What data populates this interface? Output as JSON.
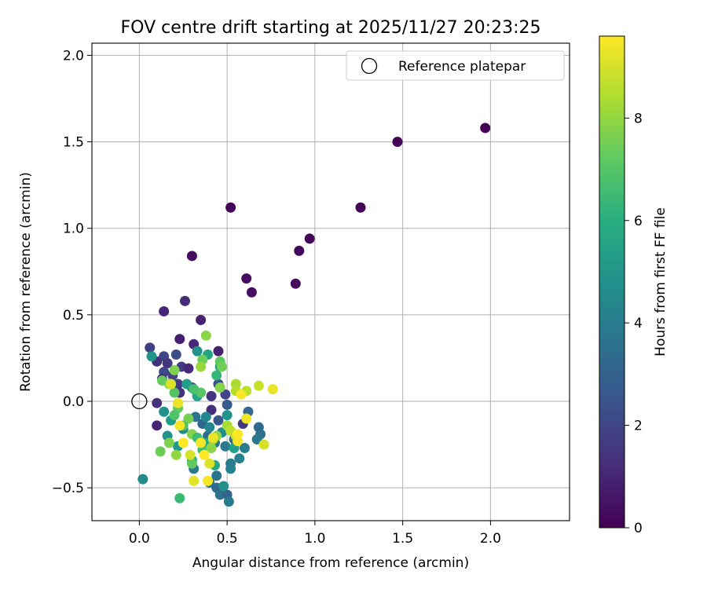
{
  "chart_data": {
    "type": "scatter",
    "title": "FOV centre drift starting at 2025/11/27 20:23:25",
    "xlabel": "Angular distance from reference (arcmin)",
    "ylabel": "Rotation from reference (arcmin)",
    "xlim": [
      -0.27,
      2.45
    ],
    "ylim": [
      -0.69,
      2.07
    ],
    "xticks": [
      {
        "value": 0.0,
        "label": "0.0"
      },
      {
        "value": 0.5,
        "label": "0.5"
      },
      {
        "value": 1.0,
        "label": "1.0"
      },
      {
        "value": 1.5,
        "label": "1.5"
      },
      {
        "value": 2.0,
        "label": "2.0"
      }
    ],
    "yticks": [
      {
        "value": -0.5,
        "label": "−0.5"
      },
      {
        "value": 0.0,
        "label": "0.0"
      },
      {
        "value": 0.5,
        "label": "0.5"
      },
      {
        "value": 1.0,
        "label": "1.0"
      },
      {
        "value": 1.5,
        "label": "1.5"
      },
      {
        "value": 2.0,
        "label": "2.0"
      }
    ],
    "grid": true,
    "legend": {
      "position": "upper-right",
      "entries": [
        "Reference platepar"
      ]
    },
    "reference_point": {
      "x": 0.0,
      "y": 0.0,
      "label": "Reference platepar"
    },
    "colorbar": {
      "label": "Hours from first FF file",
      "min": 0,
      "max": 9.6,
      "colormap": "viridis",
      "ticks": [
        {
          "value": 0,
          "label": "0"
        },
        {
          "value": 2,
          "label": "2"
        },
        {
          "value": 4,
          "label": "4"
        },
        {
          "value": 6,
          "label": "6"
        },
        {
          "value": 8,
          "label": "8"
        }
      ]
    },
    "points": [
      {
        "x": 1.97,
        "y": 1.58,
        "c": 0.02
      },
      {
        "x": 1.47,
        "y": 1.5,
        "c": 0.05
      },
      {
        "x": 1.26,
        "y": 1.12,
        "c": 0.1
      },
      {
        "x": 0.52,
        "y": 1.12,
        "c": 0.08
      },
      {
        "x": 0.97,
        "y": 0.94,
        "c": 0.15
      },
      {
        "x": 0.91,
        "y": 0.87,
        "c": 0.2
      },
      {
        "x": 0.89,
        "y": 0.68,
        "c": 0.25
      },
      {
        "x": 0.3,
        "y": 0.84,
        "c": 0.3
      },
      {
        "x": 0.61,
        "y": 0.71,
        "c": 0.35
      },
      {
        "x": 0.64,
        "y": 0.63,
        "c": 0.4
      },
      {
        "x": 0.26,
        "y": 0.58,
        "c": 1.2
      },
      {
        "x": 0.14,
        "y": 0.52,
        "c": 1.0
      },
      {
        "x": 0.35,
        "y": 0.47,
        "c": 0.9
      },
      {
        "x": 0.23,
        "y": 0.36,
        "c": 0.8
      },
      {
        "x": 0.06,
        "y": 0.31,
        "c": 1.8
      },
      {
        "x": 0.31,
        "y": 0.33,
        "c": 1.1
      },
      {
        "x": 0.45,
        "y": 0.29,
        "c": 0.9
      },
      {
        "x": 0.14,
        "y": 0.26,
        "c": 2.0
      },
      {
        "x": 0.21,
        "y": 0.27,
        "c": 2.3
      },
      {
        "x": 0.1,
        "y": 0.23,
        "c": 1.4
      },
      {
        "x": 0.16,
        "y": 0.22,
        "c": 1.5
      },
      {
        "x": 0.24,
        "y": 0.2,
        "c": 1.7
      },
      {
        "x": 0.28,
        "y": 0.19,
        "c": 1.1
      },
      {
        "x": 0.14,
        "y": 0.17,
        "c": 2.1
      },
      {
        "x": 0.19,
        "y": 0.15,
        "c": 1.9
      },
      {
        "x": 0.13,
        "y": 0.13,
        "c": 1.2
      },
      {
        "x": 0.22,
        "y": 0.1,
        "c": 1.6
      },
      {
        "x": 0.3,
        "y": 0.08,
        "c": 2.5
      },
      {
        "x": 0.23,
        "y": 0.05,
        "c": 1.3
      },
      {
        "x": 0.33,
        "y": 0.05,
        "c": 2.2
      },
      {
        "x": 0.41,
        "y": 0.03,
        "c": 1.5
      },
      {
        "x": 0.45,
        "y": 0.1,
        "c": 2.4
      },
      {
        "x": 0.49,
        "y": 0.04,
        "c": 2.0
      },
      {
        "x": 0.5,
        "y": -0.02,
        "c": 2.8
      },
      {
        "x": 0.1,
        "y": -0.01,
        "c": 1.4
      },
      {
        "x": 0.1,
        "y": -0.14,
        "c": 1.0
      },
      {
        "x": 0.41,
        "y": -0.05,
        "c": 1.3
      },
      {
        "x": 0.45,
        "y": -0.11,
        "c": 2.6
      },
      {
        "x": 0.59,
        "y": -0.13,
        "c": 1.6
      },
      {
        "x": 0.62,
        "y": -0.06,
        "c": 3.2
      },
      {
        "x": 0.68,
        "y": -0.15,
        "c": 3.3
      },
      {
        "x": 0.69,
        "y": -0.19,
        "c": 3.5
      },
      {
        "x": 0.67,
        "y": -0.22,
        "c": 3.8
      },
      {
        "x": 0.32,
        "y": -0.09,
        "c": 3.6
      },
      {
        "x": 0.36,
        "y": -0.13,
        "c": 3.2
      },
      {
        "x": 0.39,
        "y": -0.2,
        "c": 3.4
      },
      {
        "x": 0.43,
        "y": -0.24,
        "c": 3.7
      },
      {
        "x": 0.49,
        "y": -0.26,
        "c": 3.9
      },
      {
        "x": 0.54,
        "y": -0.22,
        "c": 3.5
      },
      {
        "x": 0.6,
        "y": -0.27,
        "c": 4.1
      },
      {
        "x": 0.57,
        "y": -0.33,
        "c": 4.3
      },
      {
        "x": 0.52,
        "y": -0.36,
        "c": 4.0
      },
      {
        "x": 0.52,
        "y": -0.39,
        "c": 4.2
      },
      {
        "x": 0.44,
        "y": -0.43,
        "c": 3.7
      },
      {
        "x": 0.4,
        "y": -0.47,
        "c": 3.8
      },
      {
        "x": 0.44,
        "y": -0.5,
        "c": 3.3
      },
      {
        "x": 0.46,
        "y": -0.54,
        "c": 3.6
      },
      {
        "x": 0.5,
        "y": -0.54,
        "c": 3.1
      },
      {
        "x": 0.51,
        "y": -0.58,
        "c": 4.0
      },
      {
        "x": 0.31,
        "y": -0.39,
        "c": 3.9
      },
      {
        "x": 0.02,
        "y": -0.45,
        "c": 4.6
      },
      {
        "x": 0.07,
        "y": 0.26,
        "c": 5.0
      },
      {
        "x": 0.14,
        "y": -0.06,
        "c": 4.8
      },
      {
        "x": 0.18,
        "y": -0.11,
        "c": 5.2
      },
      {
        "x": 0.16,
        "y": -0.2,
        "c": 4.9
      },
      {
        "x": 0.22,
        "y": -0.26,
        "c": 5.1
      },
      {
        "x": 0.25,
        "y": -0.16,
        "c": 4.7
      },
      {
        "x": 0.27,
        "y": 0.1,
        "c": 5.3
      },
      {
        "x": 0.33,
        "y": 0.03,
        "c": 5.5
      },
      {
        "x": 0.38,
        "y": -0.09,
        "c": 4.5
      },
      {
        "x": 0.4,
        "y": -0.15,
        "c": 4.4
      },
      {
        "x": 0.47,
        "y": -0.18,
        "c": 4.6
      },
      {
        "x": 0.5,
        "y": -0.08,
        "c": 5.0
      },
      {
        "x": 0.48,
        "y": -0.49,
        "c": 4.8
      },
      {
        "x": 0.46,
        "y": 0.2,
        "c": 5.2
      },
      {
        "x": 0.39,
        "y": 0.27,
        "c": 5.6
      },
      {
        "x": 0.33,
        "y": 0.29,
        "c": 4.9
      },
      {
        "x": 0.37,
        "y": -0.24,
        "c": 5.7
      },
      {
        "x": 0.54,
        "y": -0.27,
        "c": 5.4
      },
      {
        "x": 0.43,
        "y": -0.37,
        "c": 5.8
      },
      {
        "x": 0.3,
        "y": -0.34,
        "c": 5.9
      },
      {
        "x": 0.23,
        "y": -0.56,
        "c": 6.5
      },
      {
        "x": 0.13,
        "y": 0.12,
        "c": 7.3
      },
      {
        "x": 0.17,
        "y": 0.1,
        "c": 7.6
      },
      {
        "x": 0.2,
        "y": 0.18,
        "c": 7.7
      },
      {
        "x": 0.36,
        "y": 0.24,
        "c": 7.4
      },
      {
        "x": 0.38,
        "y": 0.38,
        "c": 7.9
      },
      {
        "x": 0.35,
        "y": 0.2,
        "c": 8.1
      },
      {
        "x": 0.46,
        "y": 0.23,
        "c": 7.2
      },
      {
        "x": 0.47,
        "y": 0.2,
        "c": 7.5
      },
      {
        "x": 0.44,
        "y": 0.15,
        "c": 6.4
      },
      {
        "x": 0.46,
        "y": 0.08,
        "c": 7.8
      },
      {
        "x": 0.35,
        "y": 0.05,
        "c": 7.1
      },
      {
        "x": 0.31,
        "y": 0.07,
        "c": 6.8
      },
      {
        "x": 0.2,
        "y": 0.05,
        "c": 7.0
      },
      {
        "x": 0.22,
        "y": -0.04,
        "c": 7.3
      },
      {
        "x": 0.2,
        "y": -0.08,
        "c": 6.9
      },
      {
        "x": 0.28,
        "y": -0.1,
        "c": 7.6
      },
      {
        "x": 0.25,
        "y": -0.14,
        "c": 7.0
      },
      {
        "x": 0.3,
        "y": -0.19,
        "c": 7.8
      },
      {
        "x": 0.33,
        "y": -0.21,
        "c": 6.6
      },
      {
        "x": 0.17,
        "y": -0.24,
        "c": 7.7
      },
      {
        "x": 0.12,
        "y": -0.29,
        "c": 7.4
      },
      {
        "x": 0.21,
        "y": -0.31,
        "c": 8.0
      },
      {
        "x": 0.3,
        "y": -0.36,
        "c": 7.2
      },
      {
        "x": 0.36,
        "y": -0.28,
        "c": 6.7
      },
      {
        "x": 0.41,
        "y": -0.27,
        "c": 7.9
      },
      {
        "x": 0.42,
        "y": -0.22,
        "c": 8.2
      },
      {
        "x": 0.44,
        "y": -0.2,
        "c": 8.0
      },
      {
        "x": 0.5,
        "y": -0.14,
        "c": 8.3
      },
      {
        "x": 0.55,
        "y": 0.1,
        "c": 8.4
      },
      {
        "x": 0.55,
        "y": 0.06,
        "c": 8.5
      },
      {
        "x": 0.61,
        "y": 0.06,
        "c": 8.6
      },
      {
        "x": 0.68,
        "y": 0.09,
        "c": 8.8
      },
      {
        "x": 0.52,
        "y": -0.17,
        "c": 8.7
      },
      {
        "x": 0.55,
        "y": -0.2,
        "c": 8.9
      },
      {
        "x": 0.71,
        "y": -0.25,
        "c": 9.0
      },
      {
        "x": 0.76,
        "y": 0.07,
        "c": 9.3
      },
      {
        "x": 0.58,
        "y": 0.04,
        "c": 9.5
      },
      {
        "x": 0.61,
        "y": -0.1,
        "c": 9.4
      },
      {
        "x": 0.56,
        "y": -0.19,
        "c": 9.6
      },
      {
        "x": 0.56,
        "y": -0.23,
        "c": 9.5
      },
      {
        "x": 0.42,
        "y": -0.21,
        "c": 9.3
      },
      {
        "x": 0.4,
        "y": -0.36,
        "c": 9.1
      },
      {
        "x": 0.37,
        "y": -0.31,
        "c": 9.6
      },
      {
        "x": 0.35,
        "y": -0.24,
        "c": 9.4
      },
      {
        "x": 0.31,
        "y": -0.46,
        "c": 9.2
      },
      {
        "x": 0.39,
        "y": -0.46,
        "c": 9.5
      },
      {
        "x": 0.25,
        "y": -0.24,
        "c": 9.6
      },
      {
        "x": 0.29,
        "y": -0.31,
        "c": 9.0
      },
      {
        "x": 0.23,
        "y": -0.14,
        "c": 9.5
      },
      {
        "x": 0.18,
        "y": 0.1,
        "c": 9.1
      },
      {
        "x": 0.22,
        "y": -0.01,
        "c": 9.3
      }
    ]
  }
}
